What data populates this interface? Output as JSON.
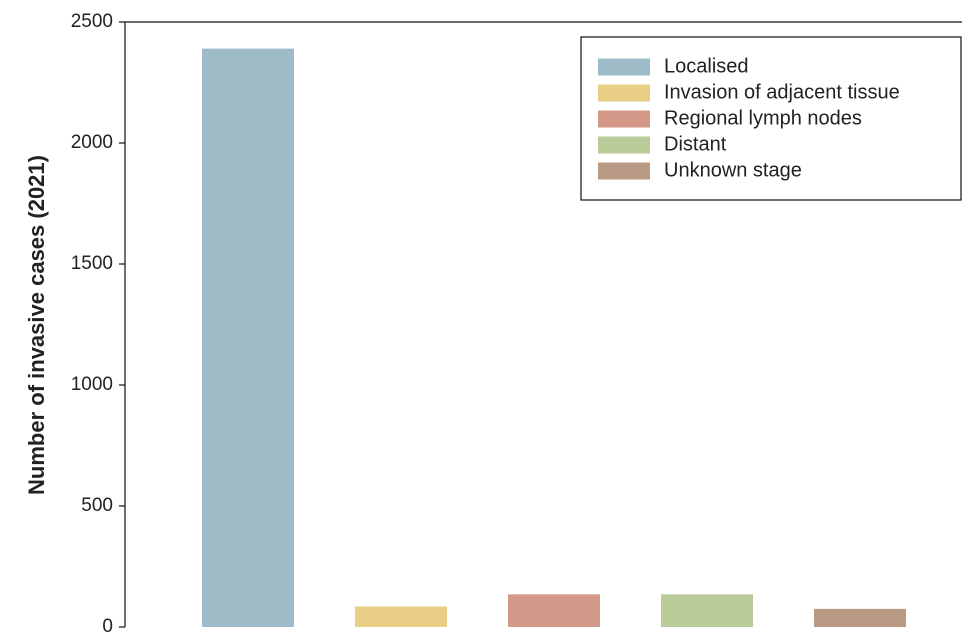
{
  "chart_data": {
    "type": "bar",
    "y_label": "Number of invasive cases (2021)",
    "categories": [
      null,
      null,
      null,
      null,
      null
    ],
    "series": [
      {
        "name": "Localised",
        "color": "#9dbcc8",
        "values": [
          2390,
          null,
          null,
          null,
          null
        ]
      },
      {
        "name": "Invasion of adjacent tissue",
        "color": "#e8cf85",
        "values": [
          null,
          85,
          null,
          null,
          null
        ]
      },
      {
        "name": "Regional lymph nodes",
        "color": "#d39888",
        "values": [
          null,
          null,
          135,
          null,
          null
        ]
      },
      {
        "name": "Distant",
        "color": "#b8cb98",
        "values": [
          null,
          null,
          null,
          135,
          null
        ]
      },
      {
        "name": "Unknown stage",
        "color": "#b99a85",
        "values": [
          null,
          null,
          null,
          null,
          75
        ]
      }
    ],
    "ylim": [
      0,
      2500
    ],
    "yticks": [
      0,
      500,
      1000,
      1500,
      2000,
      2500
    ],
    "legend": "upper right"
  }
}
